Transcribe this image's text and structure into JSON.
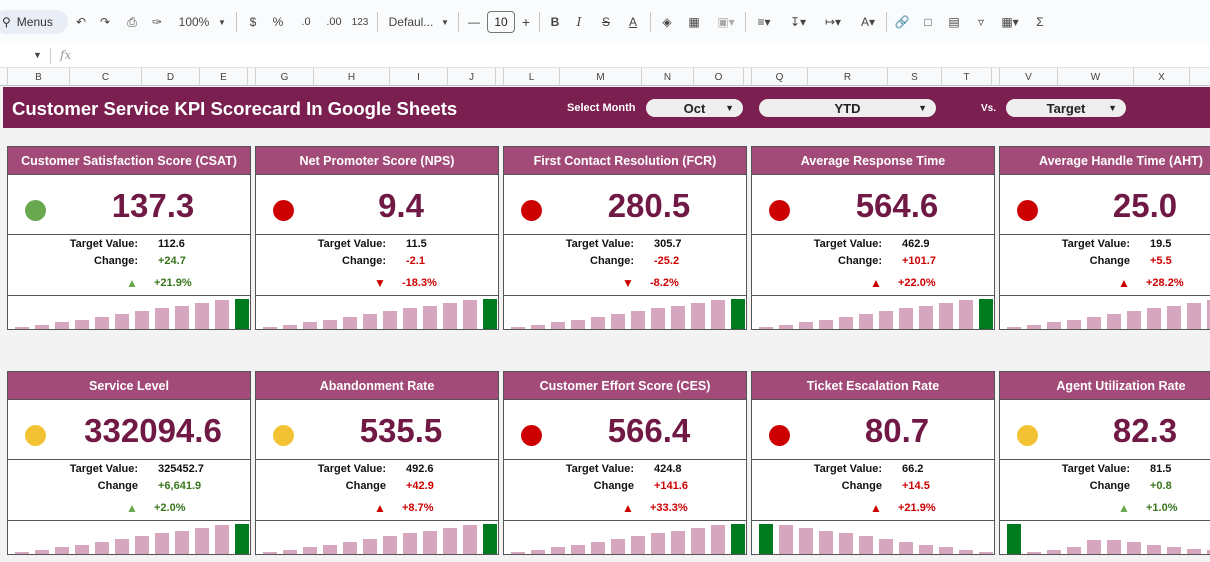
{
  "toolbar": {
    "menus_label": "Menus",
    "zoom": "100%",
    "currency": "$",
    "percent": "%",
    "dec_decrease": ".0",
    "dec_increase": ".00",
    "number_format": "123",
    "font": "Defaul...",
    "font_size": "10"
  },
  "formula_bar": {
    "fx": "fx"
  },
  "columns": [
    "B",
    "C",
    "D",
    "E",
    "G",
    "H",
    "I",
    "J",
    "L",
    "M",
    "N",
    "O",
    "Q",
    "R",
    "S",
    "T",
    "V",
    "W",
    "X"
  ],
  "header": {
    "title": "Customer Service KPI Scorecard In Google Sheets",
    "select_month_label": "Select Month",
    "month": "Oct",
    "period": "YTD",
    "vs_label": "Vs.",
    "comparison": "Target"
  },
  "labels": {
    "target": "Target Value:",
    "change": "Change:",
    "change_alt": "Change"
  },
  "colors": {
    "green_status": "#6aa84f",
    "red_status": "#cc0000",
    "yellow_status": "#f1c232",
    "positive_text": "#38761d",
    "negative_text": "#cc0000",
    "bar_normal": "#d5a6bd",
    "bar_current": "#007a1f"
  },
  "kpis": [
    {
      "name": "Customer Satisfaction Score (CSAT)",
      "value": "137.3",
      "status": "green",
      "target": "112.6",
      "change_label": "Change:",
      "change": "+24.7",
      "change_dir": "pos",
      "trend": "up",
      "trend_color": "green",
      "pct": "+21.9%",
      "spark": [
        2,
        4,
        7,
        9,
        12,
        15,
        18,
        21,
        23,
        26,
        29,
        30
      ],
      "spark_current": 11
    },
    {
      "name": "Net Promoter Score (NPS)",
      "value": "9.4",
      "status": "red",
      "target": "11.5",
      "change_label": "Change:",
      "change": "-2.1",
      "change_dir": "neg",
      "trend": "down",
      "trend_color": "red",
      "pct": "-18.3%",
      "spark": [
        2,
        4,
        7,
        9,
        12,
        15,
        18,
        21,
        23,
        26,
        29,
        30
      ],
      "spark_current": 11
    },
    {
      "name": "First Contact Resolution (FCR)",
      "value": "280.5",
      "status": "red",
      "target": "305.7",
      "change_label": "Change:",
      "change": "-25.2",
      "change_dir": "neg",
      "trend": "down",
      "trend_color": "red",
      "pct": "-8.2%",
      "spark": [
        2,
        4,
        7,
        9,
        12,
        15,
        18,
        21,
        23,
        26,
        29,
        30
      ],
      "spark_current": 11
    },
    {
      "name": "Average Response Time",
      "value": "564.6",
      "status": "red",
      "target": "462.9",
      "change_label": "Change:",
      "change": "+101.7",
      "change_dir": "neg",
      "trend": "up",
      "trend_color": "red",
      "pct": "+22.0%",
      "spark": [
        2,
        4,
        7,
        9,
        12,
        15,
        18,
        21,
        23,
        26,
        29,
        30
      ],
      "spark_current": 11
    },
    {
      "name": "Average Handle Time (AHT)",
      "value": "25.0",
      "status": "red",
      "target": "19.5",
      "change_label": "Change",
      "change": "+5.5",
      "change_dir": "neg",
      "trend": "up",
      "trend_color": "red",
      "pct": "+28.2%",
      "spark": [
        2,
        4,
        7,
        9,
        12,
        15,
        18,
        21,
        23,
        26,
        29,
        30
      ],
      "spark_current": -1
    },
    {
      "name": "Service Level",
      "value": "332094.6",
      "status": "yellow",
      "target": "325452.7",
      "change_label": "Change",
      "change": "+6,641.9",
      "change_dir": "pos",
      "trend": "up",
      "trend_color": "green",
      "pct": "+2.0%",
      "spark": [
        2,
        4,
        7,
        9,
        12,
        15,
        18,
        21,
        23,
        26,
        29,
        30
      ],
      "spark_current": 11
    },
    {
      "name": "Abandonment Rate",
      "value": "535.5",
      "status": "yellow",
      "target": "492.6",
      "change_label": "Change",
      "change": "+42.9",
      "change_dir": "neg",
      "trend": "up",
      "trend_color": "red",
      "pct": "+8.7%",
      "spark": [
        2,
        4,
        7,
        9,
        12,
        15,
        18,
        21,
        23,
        26,
        29,
        30
      ],
      "spark_current": 11
    },
    {
      "name": "Customer Effort Score (CES)",
      "value": "566.4",
      "status": "red",
      "target": "424.8",
      "change_label": "Change",
      "change": "+141.6",
      "change_dir": "neg",
      "trend": "up",
      "trend_color": "red",
      "pct": "+33.3%",
      "spark": [
        2,
        4,
        7,
        9,
        12,
        15,
        18,
        21,
        23,
        26,
        29,
        30
      ],
      "spark_current": 11
    },
    {
      "name": "Ticket Escalation Rate",
      "value": "80.7",
      "status": "red",
      "target": "66.2",
      "change_label": "Change",
      "change": "+14.5",
      "change_dir": "neg",
      "trend": "up",
      "trend_color": "red",
      "pct": "+21.9%",
      "spark": [
        30,
        29,
        26,
        23,
        21,
        18,
        15,
        12,
        9,
        7,
        4,
        2
      ],
      "spark_current": 0
    },
    {
      "name": "Agent Utilization Rate",
      "value": "82.3",
      "status": "yellow",
      "target": "81.5",
      "change_label": "Change",
      "change": "+0.8",
      "change_dir": "pos",
      "trend": "up",
      "trend_color": "green",
      "pct": "+1.0%",
      "spark": [
        30,
        2,
        4,
        7,
        14,
        14,
        12,
        9,
        7,
        5,
        4,
        2
      ],
      "spark_current": 0
    }
  ]
}
